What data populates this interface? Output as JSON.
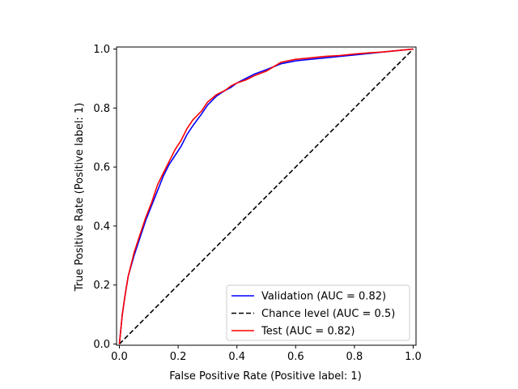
{
  "chart_data": {
    "type": "line",
    "title": "",
    "xlabel": "False Positive Rate (Positive label: 1)",
    "ylabel": "True Positive Rate (Positive label: 1)",
    "xlim": [
      0,
      1
    ],
    "ylim": [
      0,
      1
    ],
    "xticks": [
      "0.0",
      "0.2",
      "0.4",
      "0.6",
      "0.8",
      "1.0"
    ],
    "yticks": [
      "0.0",
      "0.2",
      "0.4",
      "0.6",
      "0.8",
      "1.0"
    ],
    "grid": false,
    "legend_position": "lower-right",
    "series": [
      {
        "name": "Validation (AUC = 0.82)",
        "color": "#0000ff",
        "dash": "solid",
        "x": [
          0,
          0.005,
          0.01,
          0.02,
          0.03,
          0.05,
          0.07,
          0.09,
          0.11,
          0.13,
          0.15,
          0.17,
          0.19,
          0.21,
          0.23,
          0.25,
          0.28,
          0.3,
          0.33,
          0.36,
          0.38,
          0.4,
          0.43,
          0.46,
          0.5,
          0.55,
          0.6,
          0.65,
          0.7,
          0.75,
          0.8,
          0.85,
          0.9,
          0.95,
          1.0
        ],
        "y": [
          0,
          0.05,
          0.1,
          0.17,
          0.23,
          0.3,
          0.36,
          0.42,
          0.47,
          0.52,
          0.57,
          0.61,
          0.64,
          0.67,
          0.71,
          0.74,
          0.78,
          0.81,
          0.84,
          0.86,
          0.87,
          0.885,
          0.9,
          0.915,
          0.93,
          0.95,
          0.96,
          0.965,
          0.97,
          0.975,
          0.98,
          0.985,
          0.99,
          0.995,
          1.0
        ]
      },
      {
        "name": "Chance level (AUC = 0.5)",
        "color": "#000000",
        "dash": "dashed",
        "x": [
          0,
          1
        ],
        "y": [
          0,
          1
        ]
      },
      {
        "name": "Test (AUC = 0.82)",
        "color": "#ff0000",
        "dash": "solid",
        "x": [
          0,
          0.005,
          0.01,
          0.02,
          0.03,
          0.05,
          0.07,
          0.09,
          0.11,
          0.13,
          0.15,
          0.17,
          0.19,
          0.21,
          0.23,
          0.25,
          0.28,
          0.3,
          0.33,
          0.36,
          0.38,
          0.4,
          0.43,
          0.46,
          0.5,
          0.55,
          0.6,
          0.65,
          0.7,
          0.75,
          0.8,
          0.85,
          0.9,
          0.95,
          1.0
        ],
        "y": [
          0,
          0.05,
          0.1,
          0.17,
          0.23,
          0.31,
          0.37,
          0.43,
          0.48,
          0.54,
          0.58,
          0.62,
          0.66,
          0.69,
          0.73,
          0.76,
          0.79,
          0.82,
          0.845,
          0.86,
          0.875,
          0.885,
          0.895,
          0.91,
          0.925,
          0.955,
          0.965,
          0.97,
          0.975,
          0.978,
          0.983,
          0.987,
          0.99,
          0.995,
          1.0
        ]
      }
    ]
  }
}
